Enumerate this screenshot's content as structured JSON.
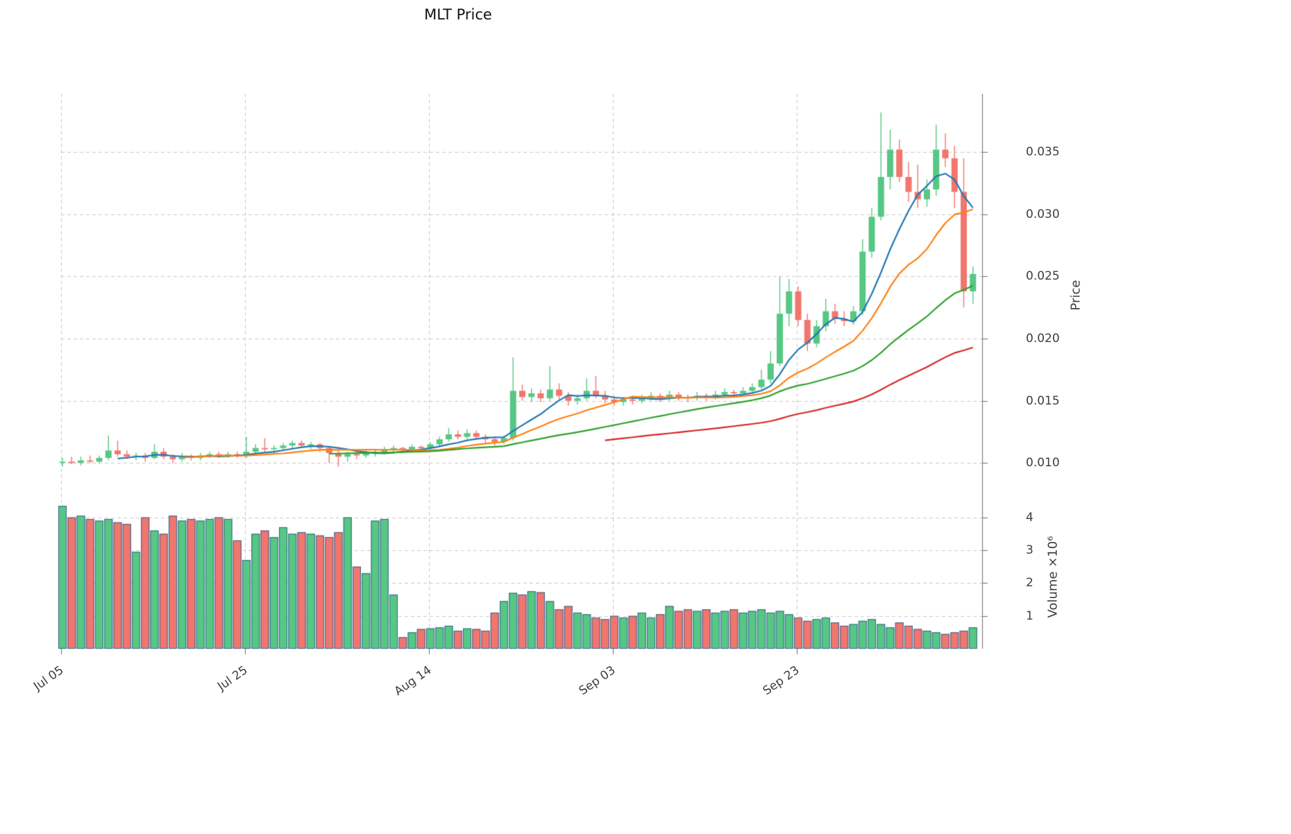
{
  "chart": {
    "title": "MLT Price",
    "price_axis_label": "Price",
    "volume_axis_label": "Volume ×10⁶"
  },
  "chart_data": {
    "type": "candlestick",
    "title": "MLT Price",
    "ylabel": "Price",
    "ylabel_lower": "Volume ×10⁶",
    "grid": true,
    "legend": "none",
    "x_tick_labels": [
      "Jul 05",
      "Jul 25",
      "Aug 14",
      "Sep 03",
      "Sep 23"
    ],
    "x_tick_positions": [
      0,
      20,
      40,
      60,
      80
    ],
    "price_ticks": [
      0.01,
      0.015,
      0.02,
      0.025,
      0.03,
      0.035
    ],
    "price_tick_labels": [
      "0.010",
      "0.015",
      "0.020",
      "0.025",
      "0.030",
      "0.035"
    ],
    "price_ylim": [
      0.0075,
      0.0397
    ],
    "volume_ticks": [
      1,
      2,
      3,
      4
    ],
    "volume_tick_labels": [
      "1",
      "2",
      "3",
      "4"
    ],
    "volume_ylim": [
      0,
      4.5
    ],
    "volume_unit": 1000000,
    "colors": {
      "up": "#57c784",
      "down": "#f0766e",
      "volume_edge": "#33618d",
      "grid": "#c9c9c9",
      "spine": "#6b6b6b",
      "tick_text": "#3d3d3d"
    },
    "moving_averages": [
      {
        "window": 7,
        "color": "#1f77b4"
      },
      {
        "window": 14,
        "color": "#ff7f0e"
      },
      {
        "window": 30,
        "color": "#2ca02c"
      },
      {
        "window": 60,
        "color": "#d62728"
      }
    ],
    "candles": {
      "open": [
        0.01,
        0.0101,
        0.01,
        0.0102,
        0.0101,
        0.0104,
        0.011,
        0.0107,
        0.0105,
        0.0106,
        0.0104,
        0.0109,
        0.0105,
        0.0103,
        0.0105,
        0.0104,
        0.0106,
        0.0107,
        0.0106,
        0.0107,
        0.0106,
        0.0109,
        0.0112,
        0.0111,
        0.0112,
        0.0114,
        0.0116,
        0.0114,
        0.0115,
        0.0112,
        0.0108,
        0.0105,
        0.0107,
        0.0106,
        0.0108,
        0.0109,
        0.0111,
        0.0112,
        0.0111,
        0.0113,
        0.0112,
        0.0115,
        0.0119,
        0.0123,
        0.0121,
        0.0124,
        0.0121,
        0.0119,
        0.0117,
        0.012,
        0.0158,
        0.0153,
        0.0156,
        0.0152,
        0.0159,
        0.0154,
        0.015,
        0.0152,
        0.0158,
        0.0154,
        0.0151,
        0.0149,
        0.0151,
        0.015,
        0.0152,
        0.0154,
        0.0152,
        0.0155,
        0.0153,
        0.0152,
        0.0154,
        0.0153,
        0.0155,
        0.0157,
        0.0156,
        0.0158,
        0.0161,
        0.0167,
        0.018,
        0.022,
        0.0238,
        0.0215,
        0.0196,
        0.021,
        0.0222,
        0.0216,
        0.0214,
        0.0222,
        0.027,
        0.0298,
        0.033,
        0.0352,
        0.033,
        0.0318,
        0.0312,
        0.032,
        0.0352,
        0.0345,
        0.0318,
        0.0238
      ],
      "high": [
        0.0104,
        0.0105,
        0.0105,
        0.0106,
        0.0106,
        0.0122,
        0.0118,
        0.011,
        0.0108,
        0.0108,
        0.0115,
        0.0112,
        0.0107,
        0.0108,
        0.0107,
        0.0108,
        0.0109,
        0.0109,
        0.0109,
        0.0109,
        0.0121,
        0.0115,
        0.012,
        0.0114,
        0.0116,
        0.0118,
        0.0118,
        0.0117,
        0.0116,
        0.0113,
        0.011,
        0.0109,
        0.0109,
        0.011,
        0.0111,
        0.0113,
        0.0114,
        0.0113,
        0.0115,
        0.0114,
        0.0117,
        0.0121,
        0.0128,
        0.0126,
        0.0127,
        0.0126,
        0.0123,
        0.0121,
        0.0122,
        0.0185,
        0.0163,
        0.016,
        0.0159,
        0.0178,
        0.0164,
        0.0157,
        0.0155,
        0.0168,
        0.017,
        0.0158,
        0.0154,
        0.0153,
        0.0154,
        0.0155,
        0.0157,
        0.0156,
        0.0158,
        0.0157,
        0.0155,
        0.0157,
        0.0156,
        0.0158,
        0.016,
        0.0159,
        0.0161,
        0.0164,
        0.0175,
        0.019,
        0.025,
        0.0248,
        0.0242,
        0.022,
        0.0215,
        0.0232,
        0.0228,
        0.0222,
        0.0226,
        0.028,
        0.0305,
        0.0382,
        0.0368,
        0.036,
        0.0342,
        0.034,
        0.0328,
        0.0372,
        0.0365,
        0.0355,
        0.0345,
        0.0258
      ],
      "low": [
        0.0097,
        0.0099,
        0.0098,
        0.01,
        0.01,
        0.0102,
        0.0105,
        0.0103,
        0.0102,
        0.0101,
        0.0103,
        0.0103,
        0.01,
        0.0101,
        0.0102,
        0.0102,
        0.0104,
        0.0104,
        0.0104,
        0.0104,
        0.0104,
        0.0106,
        0.0108,
        0.0108,
        0.011,
        0.0111,
        0.0112,
        0.0111,
        0.0109,
        0.01,
        0.0097,
        0.0101,
        0.0103,
        0.0104,
        0.0105,
        0.0107,
        0.0109,
        0.0108,
        0.0109,
        0.011,
        0.011,
        0.0113,
        0.0117,
        0.0119,
        0.0119,
        0.0119,
        0.0116,
        0.0114,
        0.0115,
        0.0118,
        0.015,
        0.0149,
        0.0149,
        0.015,
        0.0151,
        0.0146,
        0.0147,
        0.015,
        0.0152,
        0.0148,
        0.0146,
        0.0146,
        0.0147,
        0.0148,
        0.015,
        0.0149,
        0.015,
        0.015,
        0.0149,
        0.015,
        0.015,
        0.0151,
        0.0153,
        0.0153,
        0.0154,
        0.0156,
        0.0159,
        0.0164,
        0.0178,
        0.021,
        0.021,
        0.019,
        0.0193,
        0.0206,
        0.0212,
        0.021,
        0.0211,
        0.0219,
        0.0265,
        0.0295,
        0.032,
        0.0326,
        0.031,
        0.0305,
        0.0306,
        0.0315,
        0.0338,
        0.0305,
        0.0225,
        0.0228
      ],
      "close": [
        0.0101,
        0.01,
        0.0102,
        0.0101,
        0.0104,
        0.011,
        0.0107,
        0.0105,
        0.0106,
        0.0104,
        0.0109,
        0.0105,
        0.0103,
        0.0105,
        0.0104,
        0.0106,
        0.0107,
        0.0106,
        0.0107,
        0.0106,
        0.0109,
        0.0112,
        0.0111,
        0.0112,
        0.0114,
        0.0116,
        0.0114,
        0.0115,
        0.0112,
        0.0108,
        0.0105,
        0.0107,
        0.0106,
        0.0108,
        0.0109,
        0.0111,
        0.0112,
        0.0111,
        0.0113,
        0.0112,
        0.0115,
        0.0119,
        0.0123,
        0.0121,
        0.0124,
        0.0121,
        0.0119,
        0.0117,
        0.012,
        0.0158,
        0.0153,
        0.0156,
        0.0152,
        0.0159,
        0.0154,
        0.015,
        0.0152,
        0.0158,
        0.0154,
        0.0151,
        0.0149,
        0.0151,
        0.015,
        0.0152,
        0.0154,
        0.0152,
        0.0155,
        0.0153,
        0.0152,
        0.0154,
        0.0153,
        0.0155,
        0.0157,
        0.0156,
        0.0158,
        0.0161,
        0.0167,
        0.018,
        0.022,
        0.0238,
        0.0215,
        0.0196,
        0.021,
        0.0222,
        0.0216,
        0.0214,
        0.0222,
        0.027,
        0.0298,
        0.033,
        0.0352,
        0.033,
        0.0318,
        0.0312,
        0.032,
        0.0352,
        0.0345,
        0.0318,
        0.0238,
        0.0252
      ],
      "volume": [
        4.35,
        4.0,
        4.05,
        3.95,
        3.9,
        3.95,
        3.85,
        3.8,
        2.95,
        4.0,
        3.6,
        3.5,
        4.05,
        3.9,
        3.95,
        3.9,
        3.95,
        4.0,
        3.95,
        3.3,
        2.7,
        3.5,
        3.6,
        3.4,
        3.7,
        3.5,
        3.55,
        3.5,
        3.45,
        3.4,
        3.55,
        4.0,
        2.5,
        2.3,
        3.9,
        3.95,
        1.65,
        0.35,
        0.5,
        0.6,
        0.62,
        0.65,
        0.7,
        0.55,
        0.62,
        0.6,
        0.55,
        1.1,
        1.45,
        1.7,
        1.65,
        1.75,
        1.72,
        1.45,
        1.2,
        1.3,
        1.1,
        1.05,
        0.95,
        0.9,
        1.0,
        0.95,
        1.0,
        1.1,
        0.95,
        1.05,
        1.3,
        1.15,
        1.2,
        1.15,
        1.2,
        1.1,
        1.15,
        1.2,
        1.1,
        1.15,
        1.2,
        1.1,
        1.15,
        1.05,
        0.95,
        0.85,
        0.9,
        0.95,
        0.8,
        0.7,
        0.75,
        0.85,
        0.9,
        0.75,
        0.65,
        0.8,
        0.7,
        0.6,
        0.55,
        0.5,
        0.45,
        0.5,
        0.55,
        0.65
      ]
    }
  }
}
